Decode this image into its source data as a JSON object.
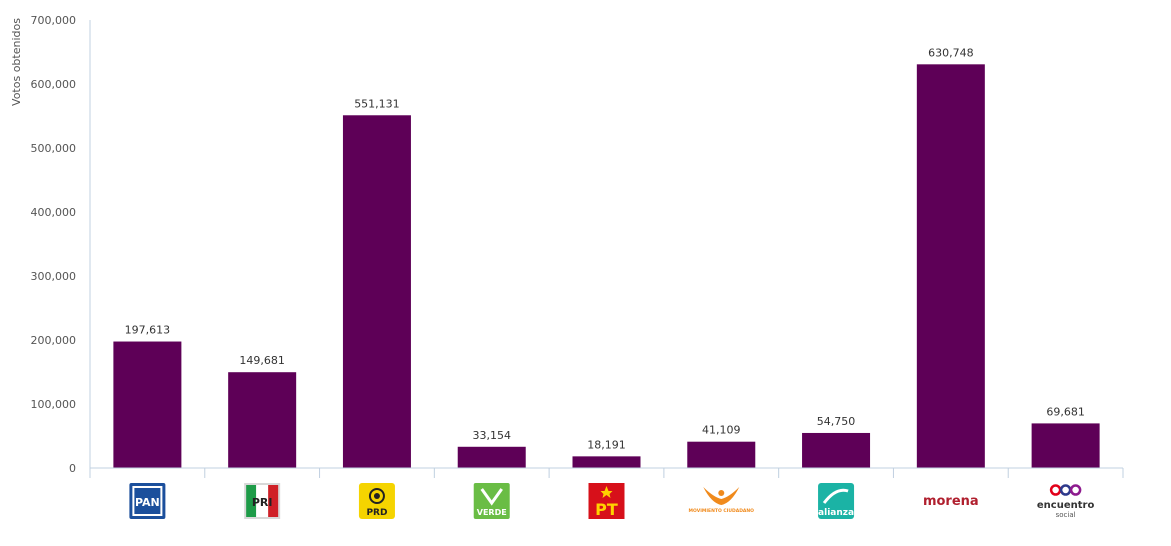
{
  "chart_data": {
    "type": "bar",
    "ylabel": "Votos obtenidos",
    "ylim": [
      0,
      700000
    ],
    "yticks": [
      "0",
      "100,000",
      "200,000",
      "300,000",
      "400,000",
      "500,000",
      "600,000",
      "700,000"
    ],
    "categories": [
      "PAN",
      "PRI",
      "PRD",
      "VERDE",
      "PT",
      "MOVIMIENTO CIUDADANO",
      "NUEVA ALIANZA",
      "morena",
      "encuentro social"
    ],
    "values": [
      197613,
      149681,
      551131,
      33154,
      18191,
      41109,
      54750,
      630748,
      69681
    ],
    "value_labels": [
      "197,613",
      "149,681",
      "551,131",
      "33,154",
      "18,191",
      "41,109",
      "54,750",
      "630,748",
      "69,681"
    ],
    "bar_color": "#5e0057",
    "axis_color": "#c0d0e0",
    "grid": false,
    "legend": "none"
  },
  "logos": [
    {
      "icon": "pan-logo-icon",
      "text": "PAN",
      "color": "#1b4f9c"
    },
    {
      "icon": "pri-logo-icon",
      "text": "PRI",
      "color": "#cf2027"
    },
    {
      "icon": "prd-logo-icon",
      "text": "PRD",
      "color": "#f5d400"
    },
    {
      "icon": "verde-logo-icon",
      "text": "VERDE",
      "color": "#6abd45"
    },
    {
      "icon": "pt-logo-icon",
      "text": "PT",
      "color": "#d7101a"
    },
    {
      "icon": "movimiento-ciudadano-logo-icon",
      "text": "MOVIMIENTO CIUDADANO",
      "color": "#f08a1c"
    },
    {
      "icon": "nueva-alianza-logo-icon",
      "text": "alianza",
      "color": "#1bb3a5"
    },
    {
      "icon": "morena-logo-icon",
      "text": "morena",
      "color": "#b01f2e"
    },
    {
      "icon": "encuentro-social-logo-icon",
      "text": "encuentro",
      "subtext": "social",
      "color": "#5c2d82"
    }
  ]
}
